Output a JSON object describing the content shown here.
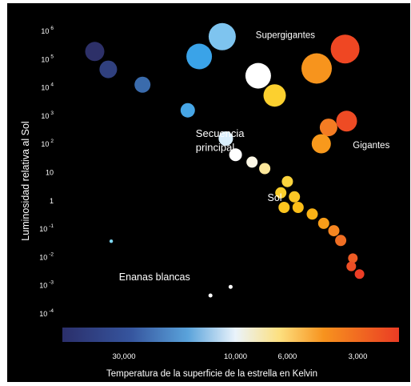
{
  "chart_data": {
    "type": "scatter",
    "title": "",
    "ylabel": "Luminosidad relativa al Sol",
    "xlabel": "Temperatura de  la superficie de la estrella en Kelvin",
    "y_scale": "log",
    "x_scale": "log-reversed",
    "ylim": [
      5e-05,
      2000000
    ],
    "xlim": [
      55000,
      2000
    ],
    "y_ticks": [
      {
        "value": 1000000,
        "base": "10",
        "exp": "6"
      },
      {
        "value": 100000,
        "base": "10",
        "exp": "5"
      },
      {
        "value": 10000,
        "base": "10",
        "exp": "4"
      },
      {
        "value": 1000,
        "base": "10",
        "exp": "3"
      },
      {
        "value": 100,
        "base": "10",
        "exp": "2"
      },
      {
        "value": 10,
        "base": "10",
        "exp": ""
      },
      {
        "value": 1,
        "base": "1",
        "exp": ""
      },
      {
        "value": 0.1,
        "base": "10",
        "exp": "-1"
      },
      {
        "value": 0.01,
        "base": "10",
        "exp": "-2"
      },
      {
        "value": 0.001,
        "base": "10",
        "exp": "-3"
      },
      {
        "value": 0.0001,
        "base": "10",
        "exp": "-4"
      }
    ],
    "x_ticks": [
      {
        "value": 30000,
        "label": "30,000"
      },
      {
        "value": 10000,
        "label": "10,000"
      },
      {
        "value": 6000,
        "label": "6,000"
      },
      {
        "value": 3000,
        "label": "3,000"
      }
    ],
    "colorbar": {
      "stops": [
        {
          "temperature": 55000,
          "color": "#2b2f6b"
        },
        {
          "temperature": 28000,
          "color": "#36559e"
        },
        {
          "temperature": 16000,
          "color": "#5aa3db"
        },
        {
          "temperature": 10000,
          "color": "#eaf3fb"
        },
        {
          "temperature": 6500,
          "color": "#fde080"
        },
        {
          "temperature": 4200,
          "color": "#f7931e"
        },
        {
          "temperature": 2000,
          "color": "#ea3c24"
        }
      ]
    },
    "annotations": [
      {
        "id": "supergigantes",
        "text": "Supergigantes",
        "temperature": 8200,
        "luminosity": 700000
      },
      {
        "id": "gigantes",
        "text": "Gigantes",
        "temperature": 3150,
        "luminosity": 90
      },
      {
        "id": "secuencia",
        "text": "Secuencia",
        "temperature": 14800,
        "luminosity": 220
      },
      {
        "id": "principal",
        "text": "principal",
        "temperature": 14800,
        "luminosity": 70
      },
      {
        "id": "sol",
        "text": "Sol",
        "temperature": 7300,
        "luminosity": 1.2
      },
      {
        "id": "enanas",
        "text": "Enanas blancas",
        "temperature": 31500,
        "luminosity": 0.0019
      }
    ],
    "series": [
      {
        "group": "main-sequence",
        "points": [
          {
            "temperature": 40000,
            "luminosity": 180000,
            "color": "#2d3068",
            "size": 12
          },
          {
            "temperature": 35000,
            "luminosity": 42000,
            "color": "#30407e",
            "size": 11
          },
          {
            "temperature": 25000,
            "luminosity": 12000,
            "color": "#3a6bac",
            "size": 10
          },
          {
            "temperature": 16000,
            "luminosity": 1500,
            "color": "#47a6e6",
            "size": 9
          },
          {
            "temperature": 11000,
            "luminosity": 150,
            "color": "#d9eefb",
            "size": 9
          },
          {
            "temperature": 10000,
            "luminosity": 40,
            "color": "#ffffff",
            "size": 8
          },
          {
            "temperature": 8500,
            "luminosity": 22,
            "color": "#fdf8e6",
            "size": 7
          },
          {
            "temperature": 7500,
            "luminosity": 13,
            "color": "#fde79a",
            "size": 7
          },
          {
            "temperature": 6000,
            "luminosity": 4.5,
            "color": "#fcd43d",
            "size": 7
          },
          {
            "temperature": 6400,
            "luminosity": 1.8,
            "color": "#fccf2c",
            "size": 7
          },
          {
            "temperature": 5600,
            "luminosity": 1.3,
            "color": "#fcc625",
            "size": 7
          },
          {
            "temperature": 6200,
            "luminosity": 0.55,
            "color": "#fdc51e",
            "size": 7
          },
          {
            "temperature": 5400,
            "luminosity": 0.55,
            "color": "#fbbd18",
            "size": 7
          },
          {
            "temperature": 4700,
            "luminosity": 0.32,
            "color": "#f9b216",
            "size": 7
          },
          {
            "temperature": 4200,
            "luminosity": 0.15,
            "color": "#f89d19",
            "size": 7
          },
          {
            "temperature": 3800,
            "luminosity": 0.082,
            "color": "#f68621",
            "size": 7
          },
          {
            "temperature": 3550,
            "luminosity": 0.037,
            "color": "#f06e23",
            "size": 7
          },
          {
            "temperature": 3150,
            "luminosity": 0.0088,
            "color": "#ed5b24",
            "size": 6
          },
          {
            "temperature": 3200,
            "luminosity": 0.0045,
            "color": "#ee4e25",
            "size": 6
          },
          {
            "temperature": 2950,
            "luminosity": 0.0024,
            "color": "#ec3d25",
            "size": 6
          }
        ]
      },
      {
        "group": "supergiants",
        "points": [
          {
            "temperature": 11400,
            "luminosity": 600000,
            "color": "#7ec4ef",
            "size": 17
          },
          {
            "temperature": 14300,
            "luminosity": 120000,
            "color": "#3aa3e8",
            "size": 16
          },
          {
            "temperature": 8000,
            "luminosity": 25000,
            "color": "#ffffff",
            "size": 16
          },
          {
            "temperature": 6800,
            "luminosity": 5000,
            "color": "#fcd02f",
            "size": 14
          },
          {
            "temperature": 4500,
            "luminosity": 45000,
            "color": "#f7941d",
            "size": 19
          },
          {
            "temperature": 3400,
            "luminosity": 220000,
            "color": "#ef4723",
            "size": 18
          }
        ]
      },
      {
        "group": "giants",
        "points": [
          {
            "temperature": 3350,
            "luminosity": 620,
            "color": "#ee4b24",
            "size": 13
          },
          {
            "temperature": 4000,
            "luminosity": 370,
            "color": "#f47c23",
            "size": 11
          },
          {
            "temperature": 4300,
            "luminosity": 98,
            "color": "#f8991c",
            "size": 12
          }
        ]
      },
      {
        "group": "white-dwarfs",
        "points": [
          {
            "temperature": 34000,
            "luminosity": 0.035,
            "color": "#7fd7f2",
            "size": 2.2
          },
          {
            "temperature": 10500,
            "luminosity": 0.00085,
            "color": "#ffffff",
            "size": 2.5
          },
          {
            "temperature": 12800,
            "luminosity": 0.00042,
            "color": "#ffffff",
            "size": 2.5
          }
        ]
      }
    ]
  }
}
